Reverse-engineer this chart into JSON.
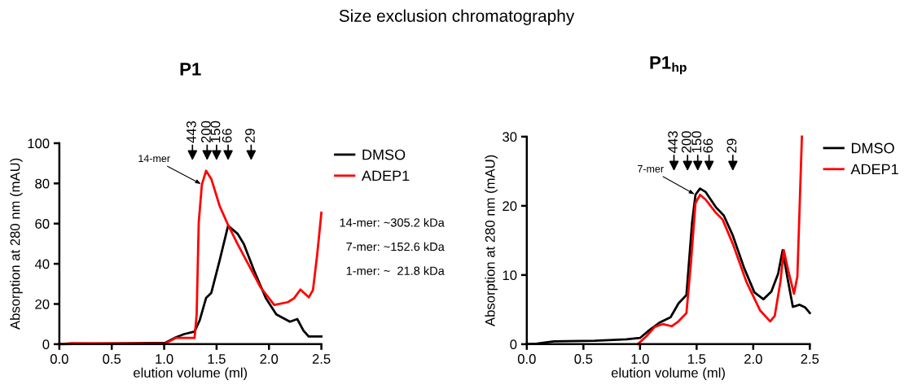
{
  "chart_data": [
    {
      "type": "line",
      "title": "P1",
      "xlabel": "elution volume (ml)",
      "ylabel": "Absorption at 280 nm (mAU)",
      "xlim": [
        0,
        2.5
      ],
      "xticks": [
        {
          "value": 0,
          "label": "0.0"
        },
        0.5,
        {
          "value": 1,
          "label": "1.0"
        },
        1.5,
        {
          "value": 2,
          "label": "2.0"
        },
        2.5
      ],
      "ylim": [
        0,
        100
      ],
      "yticks": [
        0,
        20,
        40,
        60,
        80,
        100
      ],
      "grid": false,
      "legend": "right",
      "line_style": "solid",
      "marker": "none",
      "series": [
        {
          "name": "DMSO",
          "color": "#000000",
          "x": [
            0,
            1.01,
            1.11,
            1.19,
            1.29,
            1.34,
            1.4,
            1.45,
            1.53,
            1.61,
            1.7,
            1.76,
            1.86,
            1.97,
            2.07,
            2.2,
            2.27,
            2.33,
            2.38,
            2.5
          ],
          "values": [
            0,
            0.7,
            3.4,
            5,
            6.3,
            12,
            23,
            25.6,
            41.8,
            58.9,
            55,
            49.9,
            36.4,
            22.9,
            14.8,
            11.2,
            12.5,
            6.7,
            3.8,
            3.8
          ]
        },
        {
          "name": "ADEP1",
          "color": "#ff0000",
          "x": [
            0,
            0.12,
            1.01,
            1.11,
            1.19,
            1.29,
            1.31,
            1.33,
            1.36,
            1.4,
            1.45,
            1.53,
            1.61,
            1.7,
            1.81,
            1.92,
            2.05,
            2.18,
            2.24,
            2.3,
            2.38,
            2.42,
            2.46,
            2.5
          ],
          "values": [
            0,
            0.5,
            0.3,
            3.1,
            3.1,
            3.1,
            14.8,
            60.6,
            79.5,
            86.3,
            82.2,
            68.7,
            59.3,
            49.9,
            39.1,
            28.3,
            19.5,
            20.9,
            22.9,
            27.2,
            23.3,
            27,
            44.5,
            65.4
          ]
        }
      ],
      "annotations": [
        "Size exclusion chromatography",
        "14-mer: ~305.2 kDa",
        "7-mer: ~152.6 kDa",
        "1-mer: ~  21.8 kDa",
        "443",
        "200",
        "150",
        "66",
        "29",
        {
          "text": "14-mer",
          "x": 1.36,
          "y": 79.5
        }
      ]
    },
    {
      "type": "line",
      "title": "P1$_{hp}$",
      "xlabel": "elution volume (ml)",
      "ylabel": "Absorption at 280 nm (mAU)",
      "xlim": [
        0,
        2.5
      ],
      "xticks": [
        {
          "value": 0,
          "label": "0.0"
        },
        0.5,
        {
          "value": 1,
          "label": "1.0"
        },
        1.5,
        {
          "value": 2,
          "label": "2.0"
        },
        2.5
      ],
      "ylim": [
        0,
        30
      ],
      "yticks": [
        0,
        10,
        20,
        30
      ],
      "grid": false,
      "legend": "right",
      "line_style": "solid",
      "marker": "none",
      "series": [
        {
          "name": "DMSO",
          "color": "#000000",
          "x": [
            0,
            0.09,
            0.24,
            0.6,
            0.88,
            1.0,
            1.08,
            1.17,
            1.27,
            1.34,
            1.41,
            1.46,
            1.49,
            1.53,
            1.58,
            1.67,
            1.74,
            1.82,
            1.92,
            2.01,
            2.09,
            2.16,
            2.22,
            2.26,
            2.3,
            2.35,
            2.41,
            2.46,
            2.5
          ],
          "values": [
            0,
            0.1,
            0.4,
            0.5,
            0.7,
            0.9,
            2.0,
            3.1,
            3.9,
            5.9,
            7.1,
            17.6,
            21.6,
            22.5,
            22.0,
            19.8,
            18.6,
            15.7,
            11.0,
            7.5,
            6.5,
            7.6,
            10.2,
            13.6,
            9.8,
            5.4,
            5.7,
            5.3,
            4.5
          ]
        },
        {
          "name": "ADEP1",
          "color": "#ff0000",
          "x": [
            0.98,
            1.06,
            1.13,
            1.2,
            1.28,
            1.34,
            1.41,
            1.45,
            1.49,
            1.53,
            1.58,
            1.67,
            1.73,
            1.82,
            1.94,
            2.06,
            2.15,
            2.19,
            2.24,
            2.27,
            2.31,
            2.36,
            2.39,
            2.43
          ],
          "values": [
            0,
            1.2,
            2.5,
            2.9,
            2.6,
            3.3,
            4.5,
            11.8,
            20.4,
            21.6,
            20.9,
            19.0,
            18.0,
            14.5,
            9.0,
            4.9,
            3.3,
            4.1,
            9.0,
            13.6,
            10.6,
            7.3,
            9.8,
            30
          ]
        }
      ],
      "annotations": [
        "443",
        "200",
        "150",
        "66",
        "29",
        {
          "text": "7-mer",
          "x": 1.49,
          "y": 21.6
        }
      ]
    }
  ]
}
